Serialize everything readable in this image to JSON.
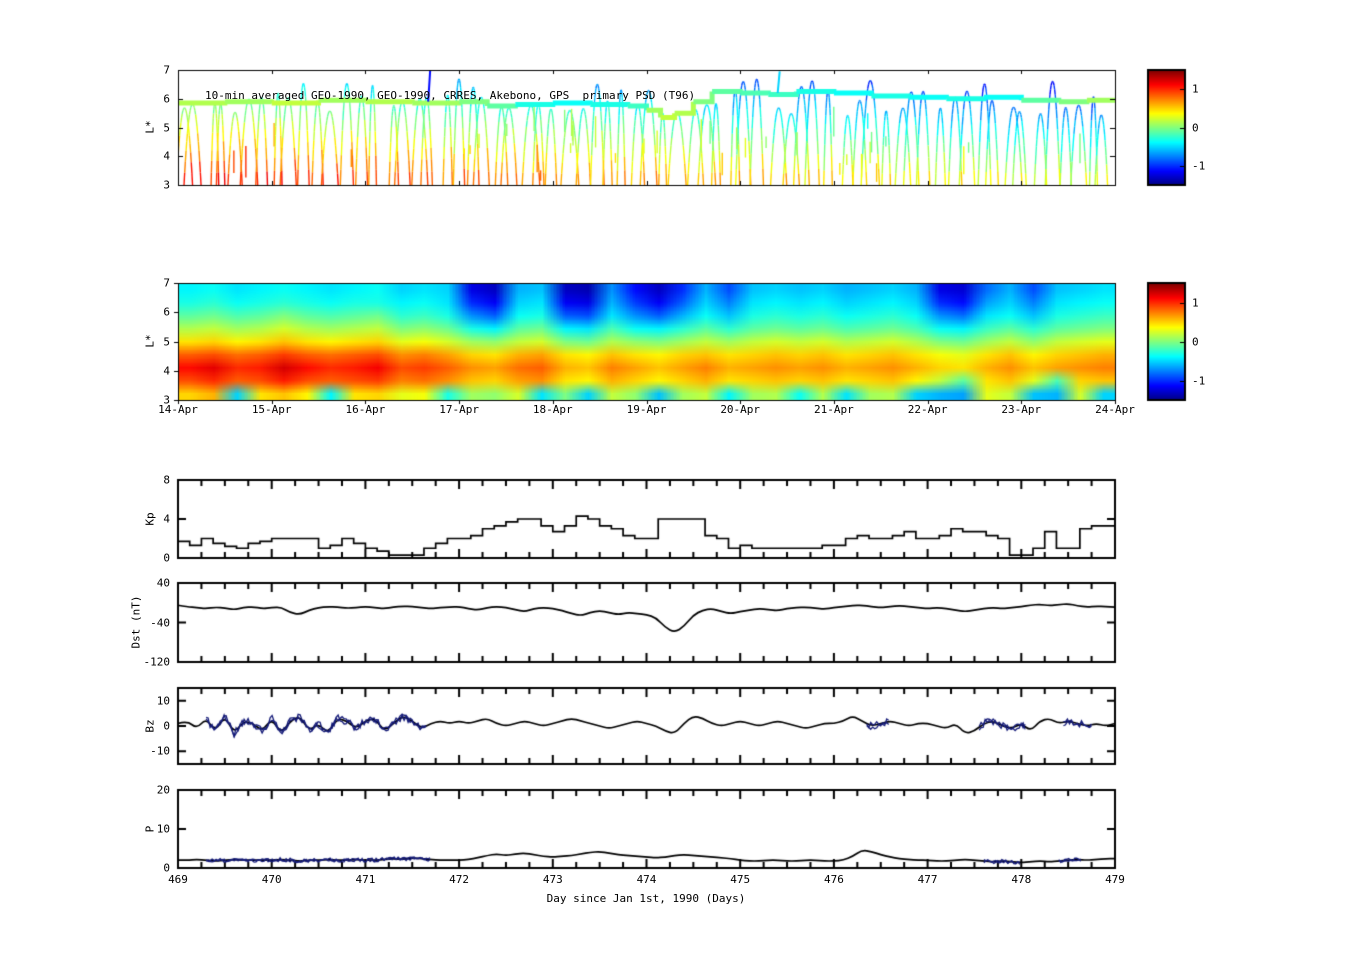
{
  "x_axis": {
    "label": "Day since Jan 1st, 1990 (Days)",
    "ticks": [
      "469",
      "470",
      "471",
      "472",
      "473",
      "474",
      "475",
      "476",
      "477",
      "478",
      "479"
    ]
  },
  "chart_data": [
    {
      "id": "psd_trajectories",
      "type": "scatter",
      "title": "10-min averaged GEO-1990, GEO-1990, CRRES, Akebono, GPS  primary PSD (T96)",
      "ylabel": "L*",
      "ylim": [
        3,
        7
      ],
      "yticks": [
        3,
        4,
        5,
        6,
        7
      ],
      "xlim": [
        469,
        479
      ],
      "colormap": "jet",
      "colorbar": {
        "range": [
          -1.5,
          1.5
        ],
        "ticks": [
          1,
          0,
          -1
        ]
      },
      "psd_model": {
        "a": 1.15,
        "bL": 0.42,
        "bt": 0.085,
        "noise": 0.2
      },
      "passes": {
        "count": 68,
        "seed": 5,
        "half_width": [
          0.04,
          0.1
        ],
        "peak_range": [
          5.4,
          6.7
        ]
      },
      "dashes": {
        "count": 40,
        "seed": 11
      },
      "spikes": [
        [
          471.67,
          5.9,
          7.0,
          -1.1
        ],
        [
          475.4,
          6.2,
          6.95,
          -0.5
        ]
      ],
      "geo_track": [
        [
          469.0,
          5.85,
          0.15
        ],
        [
          469.5,
          5.9,
          0.1
        ],
        [
          470.0,
          5.85,
          0.2
        ],
        [
          470.5,
          5.95,
          0.1
        ],
        [
          471.0,
          5.9,
          0.15
        ],
        [
          471.5,
          5.85,
          0.1
        ],
        [
          472.0,
          5.9,
          0.0
        ],
        [
          472.3,
          5.75,
          -0.1
        ],
        [
          472.6,
          5.8,
          -0.3
        ],
        [
          473.0,
          5.85,
          -0.35
        ],
        [
          473.4,
          5.8,
          -0.3
        ],
        [
          473.8,
          5.75,
          -0.2
        ],
        [
          474.0,
          5.6,
          0.1
        ],
        [
          474.15,
          5.35,
          0.2
        ],
        [
          474.3,
          5.5,
          0.15
        ],
        [
          474.5,
          5.9,
          0.0
        ],
        [
          474.7,
          6.25,
          -0.1
        ],
        [
          475.0,
          6.2,
          -0.15
        ],
        [
          475.3,
          6.15,
          -0.2
        ],
        [
          475.6,
          6.25,
          -0.3
        ],
        [
          476.0,
          6.2,
          -0.35
        ],
        [
          476.4,
          6.1,
          -0.3
        ],
        [
          476.8,
          6.05,
          -0.35
        ],
        [
          477.2,
          6.0,
          -0.3
        ],
        [
          477.6,
          6.05,
          -0.35
        ],
        [
          478.0,
          5.95,
          -0.1
        ],
        [
          478.4,
          5.9,
          0.0
        ],
        [
          478.7,
          5.95,
          0.1
        ],
        [
          479.0,
          5.9,
          0.15
        ]
      ]
    },
    {
      "id": "psd_map",
      "type": "heatmap",
      "ylabel": "L*",
      "ylim": [
        3,
        7
      ],
      "yticks": [
        3,
        4,
        5,
        6,
        7
      ],
      "xlim": [
        469,
        479
      ],
      "x_tick_labels": [
        "14-Apr",
        "15-Apr",
        "16-Apr",
        "17-Apr",
        "18-Apr",
        "19-Apr",
        "20-Apr",
        "21-Apr",
        "22-Apr",
        "23-Apr",
        "24-Apr"
      ],
      "colormap": "jet",
      "colorbar": {
        "range": [
          -1.5,
          1.5
        ],
        "ticks": [
          1,
          0,
          -1
        ]
      },
      "grid": {
        "t_start": 469,
        "t_step": 0.25,
        "l_rows_top_to_bottom": [
          7,
          6.5,
          6,
          5.5,
          5,
          4.5,
          4,
          3.5,
          3
        ],
        "values": [
          [
            -0.4,
            -0.35,
            -0.45,
            -0.4,
            -0.35,
            -0.4,
            -0.45,
            -0.4,
            -0.35,
            -0.5,
            -0.45,
            -0.5,
            -1.2,
            -1.3,
            -0.6,
            -0.55,
            -1.3,
            -1.35,
            -0.7,
            -1.1,
            -1.3,
            -1.0,
            -0.6,
            -0.9,
            -0.55,
            -0.5,
            -0.55,
            -0.5,
            -0.6,
            -0.55,
            -0.5,
            -0.6,
            -1.2,
            -1.25,
            -0.8,
            -0.6,
            -0.9,
            -0.55,
            -0.5,
            -0.45
          ],
          [
            -0.3,
            -0.25,
            -0.35,
            -0.3,
            -0.25,
            -0.3,
            -0.35,
            -0.3,
            -0.3,
            -0.4,
            -0.35,
            -0.45,
            -1.0,
            -1.15,
            -0.5,
            -0.45,
            -1.15,
            -1.2,
            -0.6,
            -0.95,
            -1.15,
            -0.85,
            -0.5,
            -0.75,
            -0.45,
            -0.4,
            -0.45,
            -0.4,
            -0.5,
            -0.45,
            -0.4,
            -0.5,
            -1.0,
            -1.1,
            -0.65,
            -0.5,
            -0.75,
            -0.45,
            -0.4,
            -0.35
          ],
          [
            -0.1,
            -0.05,
            -0.15,
            -0.1,
            0.0,
            -0.1,
            -0.15,
            -0.1,
            -0.05,
            -0.25,
            -0.2,
            -0.3,
            -0.7,
            -0.85,
            -0.35,
            -0.3,
            -0.85,
            -0.9,
            -0.45,
            -0.7,
            -0.85,
            -0.6,
            -0.35,
            -0.55,
            -0.3,
            -0.25,
            -0.3,
            -0.25,
            -0.35,
            -0.3,
            -0.25,
            -0.35,
            -0.7,
            -0.8,
            -0.45,
            -0.35,
            -0.55,
            -0.3,
            -0.25,
            -0.2
          ],
          [
            0.15,
            0.2,
            0.1,
            0.15,
            0.25,
            0.15,
            0.1,
            0.15,
            0.2,
            0.0,
            0.05,
            -0.05,
            -0.3,
            -0.4,
            -0.1,
            -0.05,
            -0.4,
            -0.45,
            -0.15,
            -0.35,
            -0.4,
            -0.25,
            -0.1,
            -0.25,
            -0.1,
            -0.05,
            -0.1,
            -0.05,
            -0.15,
            -0.1,
            -0.05,
            -0.15,
            -0.35,
            -0.4,
            -0.2,
            -0.1,
            -0.25,
            -0.1,
            -0.05,
            0.0
          ],
          [
            0.45,
            0.5,
            0.4,
            0.45,
            0.55,
            0.45,
            0.4,
            0.45,
            0.5,
            0.3,
            0.35,
            0.25,
            0.1,
            0.05,
            0.2,
            0.25,
            0.0,
            -0.05,
            0.15,
            0.05,
            0.0,
            0.1,
            0.2,
            0.1,
            0.2,
            0.25,
            0.2,
            0.25,
            0.15,
            0.2,
            0.25,
            0.15,
            0.0,
            -0.05,
            0.1,
            0.2,
            0.05,
            0.2,
            0.25,
            0.3
          ],
          [
            0.85,
            0.9,
            0.8,
            0.85,
            0.95,
            0.85,
            0.8,
            0.85,
            0.9,
            0.7,
            0.75,
            0.65,
            0.5,
            0.45,
            0.6,
            0.65,
            0.45,
            0.4,
            0.55,
            0.45,
            0.4,
            0.5,
            0.55,
            0.45,
            0.5,
            0.55,
            0.5,
            0.55,
            0.45,
            0.5,
            0.55,
            0.45,
            0.35,
            0.3,
            0.45,
            0.55,
            0.4,
            0.5,
            0.55,
            0.6
          ],
          [
            1.1,
            1.2,
            1.0,
            1.05,
            1.25,
            1.1,
            1.0,
            1.05,
            1.15,
            0.9,
            0.95,
            0.85,
            0.7,
            0.65,
            0.8,
            0.85,
            0.6,
            0.55,
            0.75,
            0.65,
            0.55,
            0.65,
            0.75,
            0.6,
            0.65,
            0.7,
            0.65,
            0.7,
            0.6,
            0.65,
            0.7,
            0.6,
            0.5,
            0.45,
            0.6,
            0.7,
            0.55,
            0.65,
            0.7,
            0.75
          ],
          [
            0.9,
            1.0,
            0.85,
            0.9,
            1.05,
            0.9,
            0.85,
            0.9,
            0.95,
            0.75,
            0.8,
            0.7,
            0.55,
            0.5,
            0.65,
            0.7,
            0.45,
            0.4,
            0.6,
            0.5,
            0.4,
            0.5,
            0.6,
            0.45,
            0.5,
            0.55,
            0.5,
            0.55,
            0.45,
            0.5,
            0.55,
            0.4,
            0.2,
            -0.1,
            0.45,
            0.55,
            0.3,
            -0.15,
            0.5,
            0.55
          ],
          [
            0.5,
            0.6,
            -0.5,
            0.45,
            0.55,
            0.4,
            -0.4,
            0.45,
            0.5,
            0.3,
            0.35,
            -0.3,
            0.1,
            0.05,
            0.25,
            -0.45,
            0.0,
            -0.5,
            0.2,
            0.05,
            -0.55,
            0.1,
            0.2,
            -0.4,
            0.1,
            0.15,
            -0.35,
            0.15,
            -0.45,
            0.1,
            0.15,
            -0.5,
            -0.6,
            -0.65,
            0.3,
            0.2,
            -0.55,
            -0.6,
            0.25,
            -0.5
          ]
        ]
      }
    },
    {
      "id": "kp",
      "type": "line",
      "ylabel": "Kp",
      "ylim": [
        0,
        8
      ],
      "yticks": [
        0,
        4,
        8
      ],
      "x_start": 469,
      "x_step": 0.125,
      "values": [
        1.7,
        1.3,
        2.0,
        1.5,
        1.2,
        1.0,
        1.5,
        1.7,
        2.0,
        2.0,
        2.0,
        2.0,
        1.0,
        1.3,
        2.0,
        1.5,
        1.0,
        0.7,
        0.3,
        0.3,
        0.3,
        1.0,
        1.5,
        2.0,
        2.0,
        2.3,
        3.0,
        3.3,
        3.7,
        4.0,
        4.0,
        3.3,
        2.7,
        3.3,
        4.3,
        4.0,
        3.3,
        3.0,
        2.3,
        2.0,
        2.0,
        4.0,
        4.0,
        4.0,
        4.0,
        2.3,
        2.0,
        1.0,
        1.3,
        1.0,
        1.0,
        1.0,
        1.0,
        1.0,
        1.0,
        1.3,
        1.3,
        2.0,
        2.3,
        2.0,
        2.0,
        2.3,
        2.7,
        2.0,
        2.0,
        2.3,
        3.0,
        2.7,
        2.7,
        2.3,
        2.0,
        0.3,
        0.3,
        1.0,
        2.7,
        1.0,
        1.0,
        3.0,
        3.3,
        3.3
      ]
    },
    {
      "id": "dst",
      "type": "line",
      "ylabel": "Dst (nT)",
      "ylim": [
        -120,
        40
      ],
      "yticks": [
        40,
        -40,
        -120
      ],
      "x_start": 469,
      "x_step": 0.1,
      "values": [
        -5,
        -8,
        -10,
        -12,
        -9,
        -11,
        -14,
        -10,
        -8,
        -12,
        -10,
        -9,
        -20,
        -24,
        -15,
        -10,
        -8,
        -9,
        -11,
        -10,
        -8,
        -10,
        -12,
        -9,
        -7,
        -8,
        -10,
        -12,
        -10,
        -9,
        -8,
        -12,
        -15,
        -10,
        -8,
        -10,
        -14,
        -18,
        -12,
        -10,
        -12,
        -16,
        -22,
        -26,
        -20,
        -16,
        -20,
        -24,
        -20,
        -22,
        -24,
        -30,
        -50,
        -60,
        -48,
        -25,
        -15,
        -12,
        -18,
        -22,
        -18,
        -15,
        -12,
        -14,
        -16,
        -12,
        -10,
        -9,
        -11,
        -13,
        -10,
        -8,
        -6,
        -5,
        -8,
        -10,
        -8,
        -6,
        -8,
        -10,
        -12,
        -10,
        -12,
        -15,
        -18,
        -15,
        -12,
        -10,
        -12,
        -10,
        -8,
        -5,
        -3,
        -6,
        -4,
        -2,
        -6,
        -9,
        -7,
        -8,
        -9
      ]
    },
    {
      "id": "bz",
      "type": "line",
      "ylabel": "Bz",
      "ylim": [
        -15,
        15
      ],
      "yticks": [
        10,
        0,
        -10
      ],
      "x_start": 469,
      "x_step": 0.1,
      "highlight_color": "#141a78",
      "highlight_ranges": [
        [
          469.3,
          471.65
        ],
        [
          476.35,
          476.6
        ],
        [
          477.55,
          478.05
        ],
        [
          478.45,
          478.75
        ]
      ],
      "values": [
        1,
        2,
        -1,
        3,
        -2,
        4,
        -3,
        2,
        1,
        -2,
        3,
        -3,
        2,
        4,
        -2,
        1,
        -3,
        3,
        2,
        -1,
        2,
        3,
        -2,
        1,
        4,
        2,
        -1,
        1,
        2,
        1,
        2,
        1,
        2,
        3,
        1,
        0,
        1,
        2,
        1,
        0,
        1,
        2,
        3,
        2,
        1,
        0,
        -1,
        0,
        1,
        2,
        1,
        0,
        -2,
        -3,
        1,
        4,
        3,
        1,
        0,
        1,
        2,
        1,
        0,
        1,
        2,
        1,
        0,
        -1,
        0,
        1,
        1,
        2,
        4,
        2,
        0,
        1,
        2,
        1,
        0,
        1,
        1,
        0,
        -1,
        1,
        -3,
        -2,
        1,
        2,
        0,
        -1,
        1,
        -2,
        2,
        3,
        1,
        2,
        1,
        0,
        1,
        0,
        1
      ]
    },
    {
      "id": "p",
      "type": "line",
      "ylabel": "P",
      "ylim": [
        0,
        20
      ],
      "yticks": [
        0,
        10,
        20
      ],
      "x_start": 469,
      "x_step": 0.1,
      "highlight_color": "#141a78",
      "highlight_ranges": [
        [
          469.3,
          471.7
        ],
        [
          477.6,
          478.0
        ],
        [
          478.4,
          478.65
        ]
      ],
      "values": [
        2,
        2,
        2.2,
        2,
        1.8,
        2,
        2.2,
        2,
        2,
        2,
        2,
        2.2,
        2,
        1.8,
        2,
        2,
        2.2,
        2,
        2,
        2.2,
        2,
        2,
        2.2,
        2.4,
        2.2,
        2.6,
        2.4,
        2.2,
        2,
        2,
        2,
        2.2,
        2.6,
        3.2,
        3.6,
        3.2,
        3.6,
        3.8,
        3.4,
        3,
        2.8,
        3,
        3.2,
        3.6,
        4,
        4.2,
        3.8,
        3.4,
        3.2,
        3,
        2.8,
        2.6,
        2.8,
        3.2,
        3.4,
        3.2,
        3,
        2.8,
        2.6,
        2.4,
        2,
        1.8,
        1.8,
        2,
        2,
        1.8,
        1.8,
        2,
        2,
        1.8,
        1.8,
        2,
        3,
        4.6,
        4.2,
        3.4,
        2.8,
        2.4,
        2.2,
        2,
        2,
        1.8,
        1.8,
        2,
        2.2,
        2,
        1.8,
        1.6,
        1.8,
        1.6,
        1.4,
        1.6,
        1.8,
        1.6,
        1.8,
        2,
        2.2,
        2,
        2.2,
        2.4,
        2.4
      ]
    }
  ]
}
